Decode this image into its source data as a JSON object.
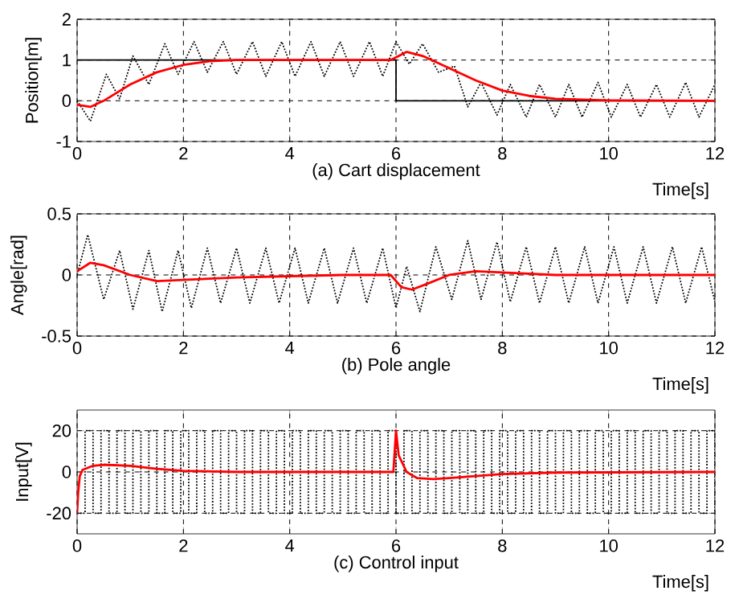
{
  "chart_data": [
    {
      "type": "line",
      "title": "(a) Cart displacement",
      "xlabel": "Time[s]",
      "ylabel": "Position[m]",
      "xlim": [
        0,
        12
      ],
      "ylim": [
        -1,
        2
      ],
      "xticks": [
        0,
        2,
        4,
        6,
        8,
        10,
        12
      ],
      "yticks": [
        -1,
        0,
        1,
        2
      ],
      "grid": true,
      "series": [
        {
          "color": "#000000",
          "line_style": "dotted",
          "x": [
            0,
            0.25,
            0.55,
            0.8,
            1.05,
            1.35,
            1.65,
            1.9,
            2.2,
            2.45,
            2.75,
            3.0,
            3.3,
            3.55,
            3.85,
            4.1,
            4.4,
            4.65,
            4.95,
            5.2,
            5.5,
            5.75,
            6.0,
            6.25,
            6.5,
            6.8,
            7.1,
            7.35,
            7.6,
            7.9,
            8.15,
            8.45,
            8.7,
            9.0,
            9.25,
            9.5,
            9.8,
            10.05,
            10.35,
            10.6,
            10.9,
            11.15,
            11.45,
            11.7,
            12
          ],
          "values": [
            0,
            -0.5,
            0.65,
            0.05,
            1.1,
            0.4,
            1.4,
            0.65,
            1.45,
            0.7,
            1.45,
            0.65,
            1.45,
            0.6,
            1.45,
            0.6,
            1.45,
            0.6,
            1.45,
            0.6,
            1.45,
            0.6,
            1.45,
            0.9,
            1.4,
            0.7,
            0.85,
            -0.15,
            0.45,
            -0.35,
            0.4,
            -0.4,
            0.4,
            -0.4,
            0.4,
            -0.4,
            0.45,
            -0.4,
            0.4,
            -0.4,
            0.4,
            -0.4,
            0.45,
            -0.4,
            0.4
          ]
        },
        {
          "color": "#000000",
          "line_style": "solid",
          "x": [
            0,
            6,
            6,
            12
          ],
          "values": [
            1,
            1,
            0,
            0
          ]
        },
        {
          "color": "#ff0000",
          "line_style": "solid",
          "x": [
            0,
            0.25,
            0.5,
            1,
            1.5,
            2,
            2.5,
            3,
            4,
            5,
            5.9,
            6.2,
            6.5,
            7,
            7.5,
            8,
            8.5,
            9,
            10,
            12
          ],
          "values": [
            -0.1,
            -0.15,
            0,
            0.4,
            0.7,
            0.88,
            0.97,
            1.0,
            1.0,
            1.0,
            1.0,
            1.2,
            1.1,
            0.8,
            0.5,
            0.25,
            0.12,
            0.05,
            0.01,
            0
          ]
        }
      ]
    },
    {
      "type": "line",
      "title": "(b) Pole angle",
      "xlabel": "Time[s]",
      "ylabel": "Angle[rad]",
      "xlim": [
        0,
        12
      ],
      "ylim": [
        -0.5,
        0.5
      ],
      "xticks": [
        0,
        2,
        4,
        6,
        8,
        10,
        12
      ],
      "yticks": [
        -0.5,
        0,
        0.5
      ],
      "grid": true,
      "series": [
        {
          "color": "#000000",
          "line_style": "dotted",
          "x": [
            0,
            0.2,
            0.5,
            0.8,
            1.05,
            1.35,
            1.6,
            1.9,
            2.15,
            2.45,
            2.7,
            3.0,
            3.25,
            3.55,
            3.8,
            4.1,
            4.35,
            4.65,
            4.9,
            5.2,
            5.45,
            5.75,
            6.0,
            6.2,
            6.45,
            6.75,
            7.05,
            7.35,
            7.6,
            7.9,
            8.15,
            8.45,
            8.7,
            9.0,
            9.25,
            9.55,
            9.8,
            10.1,
            10.35,
            10.65,
            10.9,
            11.2,
            11.45,
            11.75,
            12
          ],
          "values": [
            0,
            0.33,
            -0.2,
            0.2,
            -0.28,
            0.2,
            -0.3,
            0.2,
            -0.27,
            0.22,
            -0.23,
            0.22,
            -0.23,
            0.22,
            -0.23,
            0.22,
            -0.23,
            0.22,
            -0.23,
            0.22,
            -0.23,
            0.22,
            -0.27,
            0.07,
            -0.3,
            0.23,
            -0.2,
            0.28,
            -0.2,
            0.27,
            -0.22,
            0.23,
            -0.23,
            0.23,
            -0.23,
            0.23,
            -0.23,
            0.23,
            -0.23,
            0.23,
            -0.23,
            0.23,
            -0.23,
            0.23,
            -0.22
          ]
        },
        {
          "color": "#ff0000",
          "line_style": "solid",
          "x": [
            0,
            0.25,
            0.5,
            1,
            1.5,
            2,
            3,
            4,
            5,
            5.9,
            6.1,
            6.3,
            6.6,
            7,
            7.5,
            8,
            9,
            12
          ],
          "values": [
            0.03,
            0.1,
            0.08,
            0.0,
            -0.05,
            -0.04,
            -0.02,
            -0.01,
            0,
            0,
            -0.1,
            -0.12,
            -0.07,
            0,
            0.03,
            0.02,
            0,
            0
          ]
        }
      ]
    },
    {
      "type": "line",
      "title": "(c) Control input",
      "xlabel": "Time[s]",
      "ylabel": "Input[V]",
      "xlim": [
        0,
        12
      ],
      "ylim": [
        -30,
        30
      ],
      "xticks": [
        0,
        2,
        4,
        6,
        8,
        10,
        12
      ],
      "yticks": [
        -20,
        0,
        20
      ],
      "grid": true,
      "series": [
        {
          "type": "step",
          "color": "#000000",
          "line_style": "dotted",
          "x": [
            0,
            0.15,
            0.3,
            0.45,
            0.6,
            0.75,
            0.9,
            1.05,
            1.2,
            1.35,
            1.5,
            1.65,
            1.8,
            1.95,
            2.1,
            2.25,
            2.4,
            2.55,
            2.7,
            2.85,
            3,
            3.15,
            3.3,
            3.45,
            3.6,
            3.75,
            3.9,
            4.05,
            4.2,
            4.35,
            4.5,
            4.65,
            4.8,
            4.95,
            5.1,
            5.25,
            5.4,
            5.55,
            5.7,
            5.85,
            6,
            6.15,
            6.3,
            6.45,
            6.6,
            6.75,
            6.9,
            7.05,
            7.2,
            7.35,
            7.5,
            7.65,
            7.8,
            7.95,
            8.1,
            8.25,
            8.4,
            8.55,
            8.7,
            8.85,
            9,
            9.15,
            9.3,
            9.45,
            9.6,
            9.75,
            9.9,
            10.05,
            10.2,
            10.35,
            10.5,
            10.65,
            10.8,
            10.95,
            11.1,
            11.25,
            11.4,
            11.55,
            11.7,
            11.85,
            12
          ],
          "values": [
            -20,
            20,
            -20,
            20,
            -20,
            20,
            -20,
            20,
            -20,
            20,
            -20,
            20,
            -20,
            20,
            -20,
            20,
            -20,
            20,
            -20,
            20,
            -20,
            20,
            -20,
            20,
            -20,
            20,
            -20,
            20,
            -20,
            20,
            -20,
            20,
            -20,
            20,
            -20,
            20,
            -20,
            20,
            -20,
            20,
            -20,
            20,
            -20,
            20,
            -20,
            20,
            -20,
            20,
            -20,
            20,
            -20,
            20,
            -20,
            20,
            -20,
            20,
            -20,
            20,
            -20,
            20,
            -20,
            20,
            -20,
            20,
            -20,
            20,
            -20,
            20,
            -20,
            20,
            -20,
            20,
            -20,
            20,
            -20,
            20,
            -20,
            20,
            -20,
            20,
            -20
          ]
        },
        {
          "color": "#ff0000",
          "line_style": "solid",
          "x": [
            0,
            0.02,
            0.05,
            0.1,
            0.3,
            0.5,
            1,
            1.5,
            2,
            3,
            5.95,
            6.0,
            6.05,
            6.2,
            6.4,
            6.7,
            7,
            7.5,
            8,
            9,
            12
          ],
          "values": [
            -20,
            -10,
            -2,
            1,
            3,
            3.5,
            3,
            1.5,
            0.5,
            0,
            0,
            20,
            8,
            0,
            -3,
            -3.5,
            -3,
            -2,
            -1,
            -0.3,
            0
          ]
        }
      ]
    }
  ]
}
